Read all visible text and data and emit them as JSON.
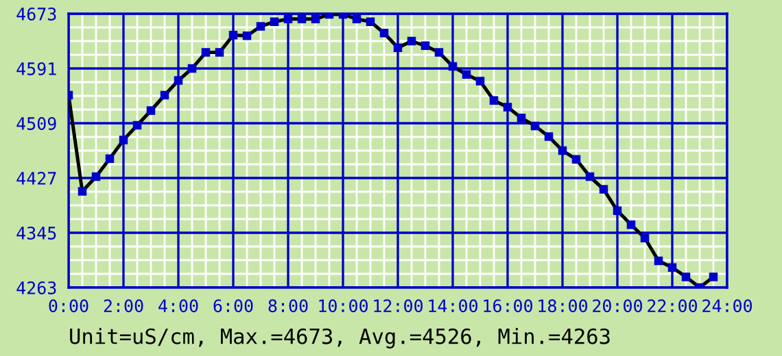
{
  "chart_data": {
    "type": "line",
    "x": [
      0,
      0.5,
      1,
      1.5,
      2,
      2.5,
      3,
      3.5,
      4,
      4.5,
      5,
      5.5,
      6,
      6.5,
      7,
      7.5,
      8,
      8.5,
      9,
      9.5,
      10,
      10.5,
      11,
      11.5,
      12,
      12.5,
      13,
      13.5,
      14,
      14.5,
      15,
      15.5,
      16,
      16.5,
      17,
      17.5,
      18,
      18.5,
      19,
      19.5,
      20,
      20.5,
      21,
      21.5,
      22,
      22.5,
      23,
      23.5
    ],
    "series": [
      {
        "color": "#000000",
        "values": [
          4551,
          4407,
          4429,
          4456,
          4484,
          4506,
          4528,
          4551,
          4573,
          4591,
          4615,
          4615,
          4641,
          4640,
          4654,
          4661,
          4665,
          4665,
          4665,
          4672,
          4672,
          4665,
          4661,
          4644,
          4622,
          4632,
          4625,
          4615,
          4594,
          4582,
          4572,
          4543,
          4533,
          4517,
          4505,
          4489,
          4468,
          4455,
          4429,
          4410,
          4378,
          4357,
          4337,
          4303,
          4293,
          4279,
          4263,
          4279
        ]
      }
    ],
    "xlim": [
      0,
      24
    ],
    "xticks": [
      {
        "value": 0,
        "label": "0:00"
      },
      {
        "value": 2,
        "label": "2:00"
      },
      {
        "value": 4,
        "label": "4:00"
      },
      {
        "value": 6,
        "label": "6:00"
      },
      {
        "value": 8,
        "label": "8:00"
      },
      {
        "value": 10,
        "label": "10:00"
      },
      {
        "value": 12,
        "label": "12:00"
      },
      {
        "value": 14,
        "label": "14:00"
      },
      {
        "value": 16,
        "label": "16:00"
      },
      {
        "value": 18,
        "label": "18:00"
      },
      {
        "value": 20,
        "label": "20:00"
      },
      {
        "value": 22,
        "label": "22:00"
      },
      {
        "value": 24,
        "label": "24:00"
      }
    ],
    "ylim": [
      4263,
      4673
    ],
    "yticks": [
      4263,
      4345,
      4427,
      4509,
      4591,
      4673
    ],
    "grid": true,
    "marker": "square",
    "line_style": "solid",
    "annotations": [
      "Unit=uS/cm, Max.=4673, Avg.=4526, Min.=4263"
    ]
  }
}
